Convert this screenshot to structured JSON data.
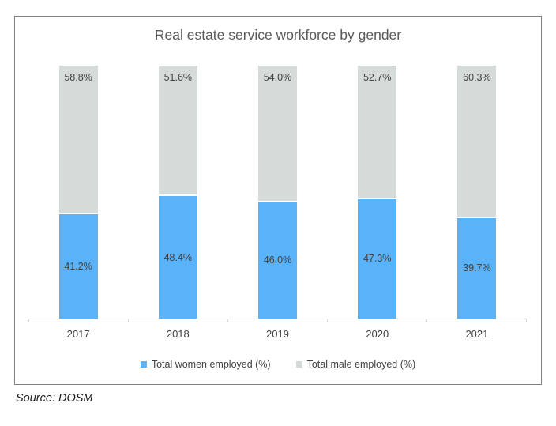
{
  "title": "Real estate service workforce by gender",
  "source_note": "Source: DOSM",
  "colors": {
    "women_bar": "#5ab2f8",
    "men_bar": "#d5dbd9",
    "axis": "#d9d9d9",
    "data_label": "#404040",
    "title_text": "#595959",
    "panel_border": "#808080"
  },
  "legend": {
    "items": [
      {
        "label": "Total women employed (%)",
        "color": "#5ab2f8"
      },
      {
        "label": "Total male employed (%)",
        "color": "#d5dbd9"
      }
    ],
    "position": "bottom"
  },
  "chart_data": {
    "type": "bar",
    "stacked": true,
    "title": "Real estate service workforce by gender",
    "categories": [
      "2017",
      "2018",
      "2019",
      "2020",
      "2021"
    ],
    "series": [
      {
        "name": "Total women employed (%)",
        "color": "#5ab2f8",
        "values": [
          41.2,
          48.4,
          46.0,
          47.3,
          39.7
        ],
        "labels": [
          "41.2%",
          "48.4%",
          "46.0%",
          "47.3%",
          "39.7%"
        ],
        "label_position": "center"
      },
      {
        "name": "Total male employed (%)",
        "color": "#d5dbd9",
        "values": [
          58.8,
          51.6,
          54.0,
          52.7,
          60.3
        ],
        "labels": [
          "58.8%",
          "51.6%",
          "54.0%",
          "52.7%",
          "60.3%"
        ],
        "label_position": "inside-end"
      }
    ],
    "xlabel": "",
    "ylabel": "",
    "ylim": [
      0,
      100
    ],
    "grid": false,
    "legend_position": "bottom"
  }
}
